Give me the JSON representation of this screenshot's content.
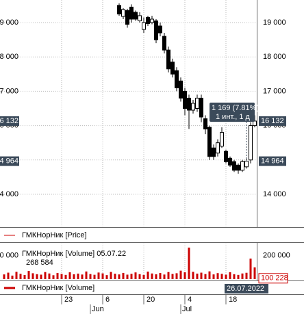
{
  "chart_data": [
    {
      "type": "candlestick",
      "xticks": [
        {
          "value": 14,
          "label": "23"
        },
        {
          "value": 24,
          "label": "6"
        },
        {
          "value": 34,
          "label": "20"
        },
        {
          "value": 44,
          "label": "4"
        },
        {
          "value": 54,
          "label": "18"
        }
      ],
      "month_ticks": [
        {
          "value": 21,
          "label": "Jun"
        },
        {
          "value": 43,
          "label": "Jul"
        }
      ],
      "xlim": [
        -1,
        62
      ],
      "date_label": "26.07.2022",
      "open": [
        null,
        null,
        null,
        null,
        null,
        null,
        null,
        null,
        null,
        null,
        null,
        null,
        null,
        null,
        null,
        null,
        null,
        null,
        null,
        null,
        null,
        null,
        null,
        null,
        null,
        null,
        null,
        null,
        19500,
        19180,
        19350,
        19450,
        19300,
        19050,
        18800,
        19150,
        19000,
        19050,
        18900,
        18600,
        18200,
        17850,
        17600,
        17300,
        17000,
        16800,
        16450,
        16500,
        16800,
        16200,
        15950,
        15350,
        15200,
        15400,
        15250,
        15050,
        14950,
        14850,
        14700,
        14800,
        15000,
        16000
      ],
      "high": [
        null,
        null,
        null,
        null,
        null,
        null,
        null,
        null,
        null,
        null,
        null,
        null,
        null,
        null,
        null,
        null,
        null,
        null,
        null,
        null,
        null,
        null,
        null,
        null,
        null,
        null,
        null,
        null,
        19560,
        19420,
        19400,
        19530,
        19350,
        19300,
        19150,
        19200,
        19200,
        19100,
        19000,
        18700,
        18300,
        17950,
        17700,
        17400,
        17100,
        16900,
        16750,
        16900,
        16900,
        16300,
        16000,
        15450,
        15600,
        15950,
        15300,
        15100,
        15000,
        14900,
        15000,
        15050,
        16100,
        16300
      ],
      "low": [
        null,
        null,
        null,
        null,
        null,
        null,
        null,
        null,
        null,
        null,
        null,
        null,
        null,
        null,
        null,
        null,
        null,
        null,
        null,
        null,
        null,
        null,
        null,
        null,
        null,
        null,
        null,
        null,
        19200,
        19100,
        18850,
        19000,
        19050,
        19000,
        18700,
        18900,
        18950,
        18400,
        18600,
        18100,
        17550,
        17400,
        17000,
        16700,
        16300,
        15900,
        16350,
        16400,
        16100,
        15750,
        15000,
        15000,
        15100,
        15350,
        14900,
        14800,
        14650,
        14600,
        14650,
        14750,
        14900,
        15950
      ],
      "close": [
        null,
        null,
        null,
        null,
        null,
        null,
        null,
        null,
        null,
        null,
        null,
        null,
        null,
        null,
        null,
        null,
        null,
        null,
        null,
        null,
        null,
        null,
        null,
        null,
        null,
        null,
        null,
        null,
        19250,
        19380,
        18950,
        19100,
        19100,
        19200,
        19000,
        18970,
        19100,
        18500,
        18700,
        18200,
        17650,
        17500,
        17100,
        16800,
        16500,
        16450,
        16650,
        16800,
        16250,
        15900,
        15100,
        15100,
        15500,
        15800,
        14950,
        14850,
        14700,
        14700,
        14950,
        14964,
        16000,
        16132
      ],
      "ylim": [
        13044,
        19657
      ],
      "yticks": [
        {
          "value": 14000,
          "label": "14 000"
        },
        {
          "value": 15000,
          "label": "15 000"
        },
        {
          "value": 16000,
          "label": "16 000"
        },
        {
          "value": 17000,
          "label": "17 000"
        },
        {
          "value": 18000,
          "label": "18 000"
        },
        {
          "value": 19000,
          "label": "19 000"
        }
      ],
      "price_markers": [
        {
          "value": 16132,
          "label": "16 132"
        },
        {
          "value": 14964,
          "label": "14 964"
        }
      ],
      "tooltip": [
        "1 169 (7.81%)",
        "1 инт., 1 д"
      ],
      "legend": "ГМКНорНик [Price]",
      "color": "#cc0000",
      "grid": true
    },
    {
      "type": "bar",
      "values": [
        40000,
        55000,
        30000,
        62000,
        45000,
        35000,
        70000,
        50000,
        42000,
        38000,
        60000,
        48000,
        33000,
        52000,
        44000,
        36000,
        58000,
        41000,
        47000,
        39000,
        65000,
        43000,
        37000,
        56000,
        49000,
        34000,
        61000,
        46000,
        40000,
        53000,
        38000,
        45000,
        57000,
        42000,
        36000,
        64000,
        48000,
        41000,
        52000,
        39000,
        60000,
        44000,
        50000,
        72000,
        58000,
        268584,
        62000,
        47000,
        55000,
        43000,
        66000,
        40000,
        51000,
        45000,
        38000,
        59000,
        42000,
        36000,
        48000,
        54000,
        175000,
        100228
      ],
      "value_labels": {
        "45": "268 584",
        "61": "100 228"
      },
      "hover_title": "ГМКНорНик [Volume] 05.07.22",
      "ylim": [
        0,
        303000
      ],
      "yticks": [
        {
          "value": 200000,
          "label": "200 000"
        }
      ],
      "legend": "ГМКНорНик [Volume]",
      "color": "#cc0000"
    }
  ]
}
